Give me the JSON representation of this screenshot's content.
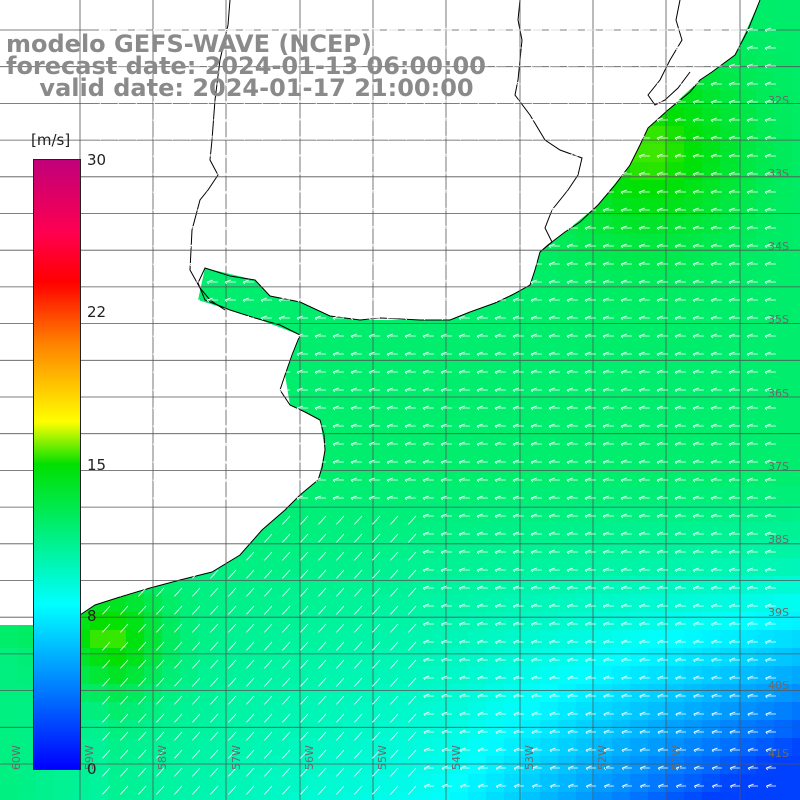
{
  "title": {
    "line1": "modelo GEFS-WAVE (NCEP)",
    "line2": "forecast date: 2024-01-13 06:00:00",
    "line3": "    valid date: 2024-01-17 21:00:00"
  },
  "colorbar": {
    "unit": "[m/s]",
    "min": 0,
    "max": 30,
    "ticks": [
      "30",
      "22",
      "15",
      "8",
      "0"
    ],
    "colors": [
      "#0000ff",
      "#00ffff",
      "#00e000",
      "#ffff00",
      "#ff8000",
      "#ff0000",
      "#c0007a"
    ]
  },
  "map": {
    "lat_labels": [
      "32S",
      "33S",
      "34S",
      "35S",
      "36S",
      "37S",
      "38S",
      "39S",
      "40S",
      "41S"
    ],
    "lon_labels": [
      "60W",
      "59W",
      "58W",
      "57W",
      "56W",
      "55W",
      "54W",
      "53W",
      "52W",
      "51W"
    ],
    "land_color": "#ffffff",
    "coast_color": "#000000",
    "grid_color": "#555555",
    "arrow_color": "#ffffff"
  }
}
